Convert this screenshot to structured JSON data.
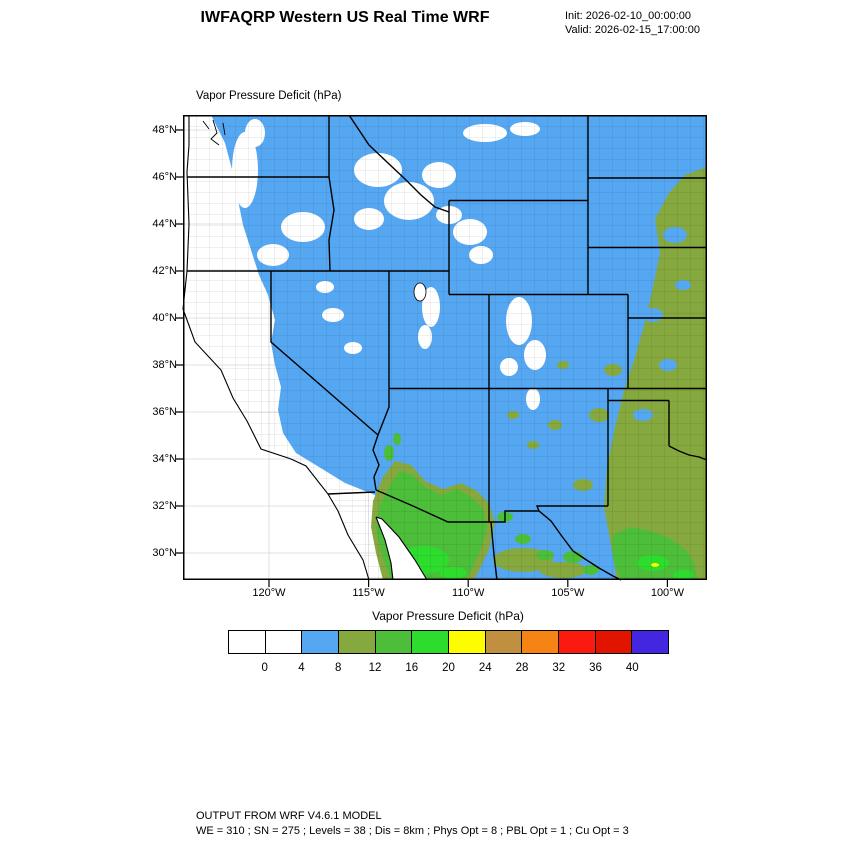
{
  "header": {
    "title": "IWFAQRP Western US Real Time WRF",
    "init_label": "Init: 2026-02-10_00:00:00",
    "valid_label": "Valid: 2026-02-15_17:00:00"
  },
  "map": {
    "field_label": "Vapor Pressure Deficit   (hPa)",
    "lat_ticks": [
      "48°N",
      "46°N",
      "44°N",
      "42°N",
      "40°N",
      "38°N",
      "36°N",
      "34°N",
      "32°N",
      "30°N"
    ],
    "lon_ticks": [
      "120°W",
      "115°W",
      "110°W",
      "105°W",
      "100°W"
    ]
  },
  "colorbar": {
    "title": "Vapor Pressure Deficit  (hPa)",
    "tick_labels": [
      "0",
      "4",
      "8",
      "12",
      "16",
      "20",
      "24",
      "28",
      "32",
      "36",
      "40"
    ],
    "colors": [
      "#ffffff",
      "#ffffff",
      "#56a7f2",
      "#85a93f",
      "#4cbe3a",
      "#2edc2e",
      "#fdfd00",
      "#c08f40",
      "#f58414",
      "#fb1a10",
      "#e11400",
      "#4326e0"
    ]
  },
  "footer": {
    "line1": "OUTPUT FROM WRF V4.6.1 MODEL",
    "line2": "WE = 310 ; SN = 275 ; Levels = 38 ; Dis = 8km ; Phys Opt = 8 ; PBL Opt = 1 ; Cu Opt = 3"
  },
  "chart_data": {
    "type": "heatmap",
    "title": "Vapor Pressure Deficit (hPa)",
    "units": "hPa",
    "levels": [
      0,
      4,
      8,
      12,
      16,
      20,
      24,
      28,
      32,
      36,
      40
    ],
    "palette": [
      "#ffffff",
      "#ffffff",
      "#56a7f2",
      "#85a93f",
      "#4cbe3a",
      "#2edc2e",
      "#fdfd00",
      "#c08f40",
      "#f58414",
      "#fb1a10",
      "#e11400",
      "#4326e0"
    ],
    "lat_range": [
      "30°N",
      "48°N"
    ],
    "lon_range": [
      "120°W",
      "100°W"
    ],
    "legend_position": "bottom"
  }
}
